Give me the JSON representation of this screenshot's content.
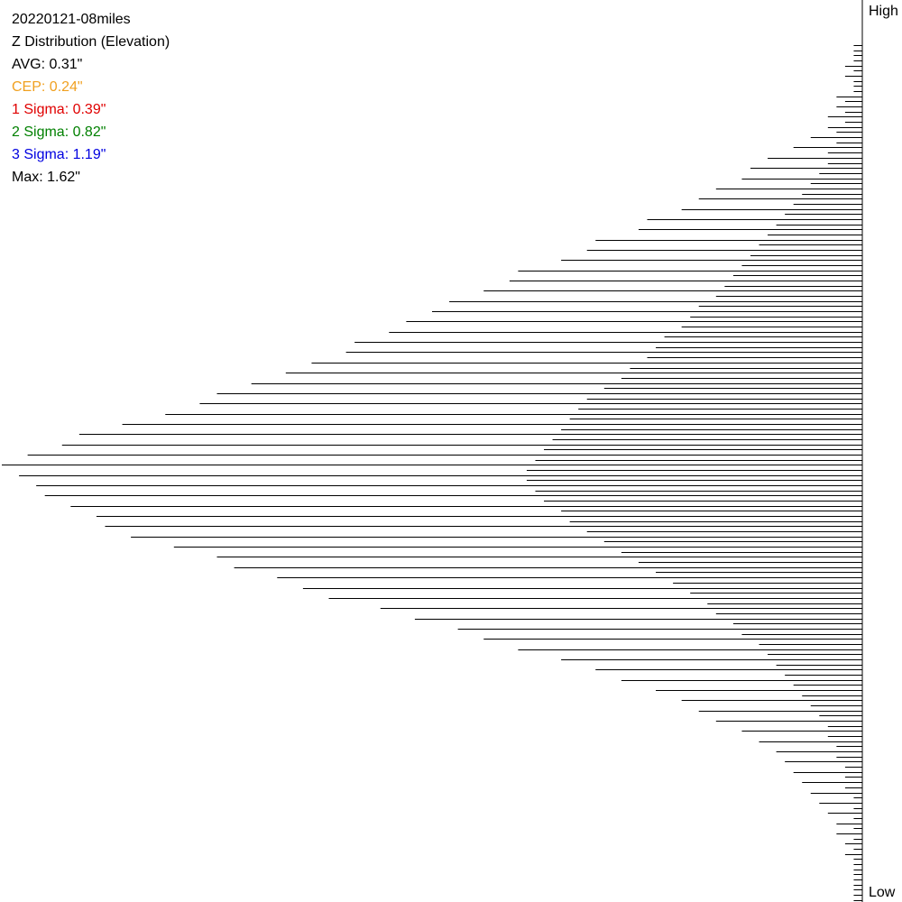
{
  "title": "20220121-08miles",
  "subtitle": "Z Distribution (Elevation)",
  "stats": {
    "avg": {
      "text": "AVG: 0.31\"",
      "color": "#000000"
    },
    "cep": {
      "text": "CEP: 0.24\"",
      "color": "#f0a020"
    },
    "sigma1": {
      "text": "1 Sigma: 0.39\"",
      "color": "#e00000"
    },
    "sigma2": {
      "text": "2 Sigma: 0.82\"",
      "color": "#008000"
    },
    "sigma3": {
      "text": "3 Sigma: 1.19\"",
      "color": "#0000e0"
    },
    "max": {
      "text": "Max: 1.62\"",
      "color": "#000000"
    }
  },
  "axis": {
    "high_label": "High",
    "low_label": "Low"
  },
  "chart_data": {
    "type": "bar",
    "orientation": "horizontal",
    "series": [
      {
        "values": [
          1,
          1,
          2,
          2,
          1,
          3,
          3,
          4,
          4,
          6,
          8,
          11,
          13,
          14,
          17,
          19,
          21,
          25,
          26,
          31,
          32,
          35,
          40,
          41,
          44,
          48,
          50,
          53,
          55,
          59,
          60,
          64,
          67,
          71,
          75,
          77,
          81,
          86,
          91,
          93,
          97,
          100,
          98,
          96,
          95,
          92,
          89,
          88,
          85,
          80,
          75,
          73,
          68,
          65,
          62,
          56,
          52,
          47,
          44,
          40,
          35,
          31,
          28,
          24,
          21,
          19,
          17,
          14,
          12,
          10,
          9,
          8,
          7,
          6,
          5,
          4,
          3,
          3,
          2,
          2,
          1,
          1,
          1,
          1
        ]
      },
      {
        "values": [
          1,
          1,
          1,
          1,
          1,
          2,
          2,
          2,
          3,
          3,
          4,
          4,
          5,
          6,
          7,
          8,
          9,
          10,
          11,
          12,
          13,
          14,
          15,
          16,
          17,
          19,
          20,
          21,
          23,
          24,
          25,
          27,
          28,
          30,
          32,
          33,
          34,
          35,
          36,
          37,
          38,
          39,
          39,
          38,
          37,
          35,
          34,
          32,
          30,
          28,
          26,
          24,
          22,
          20,
          18,
          17,
          15,
          14,
          12,
          11,
          10,
          9,
          8,
          7,
          6,
          5,
          4,
          4,
          3,
          3,
          2,
          2,
          2,
          1,
          1,
          1,
          1,
          1,
          1,
          1,
          1,
          1,
          1,
          1
        ]
      }
    ],
    "xlim": [
      0,
      100
    ],
    "grid": false,
    "legend": "none"
  }
}
